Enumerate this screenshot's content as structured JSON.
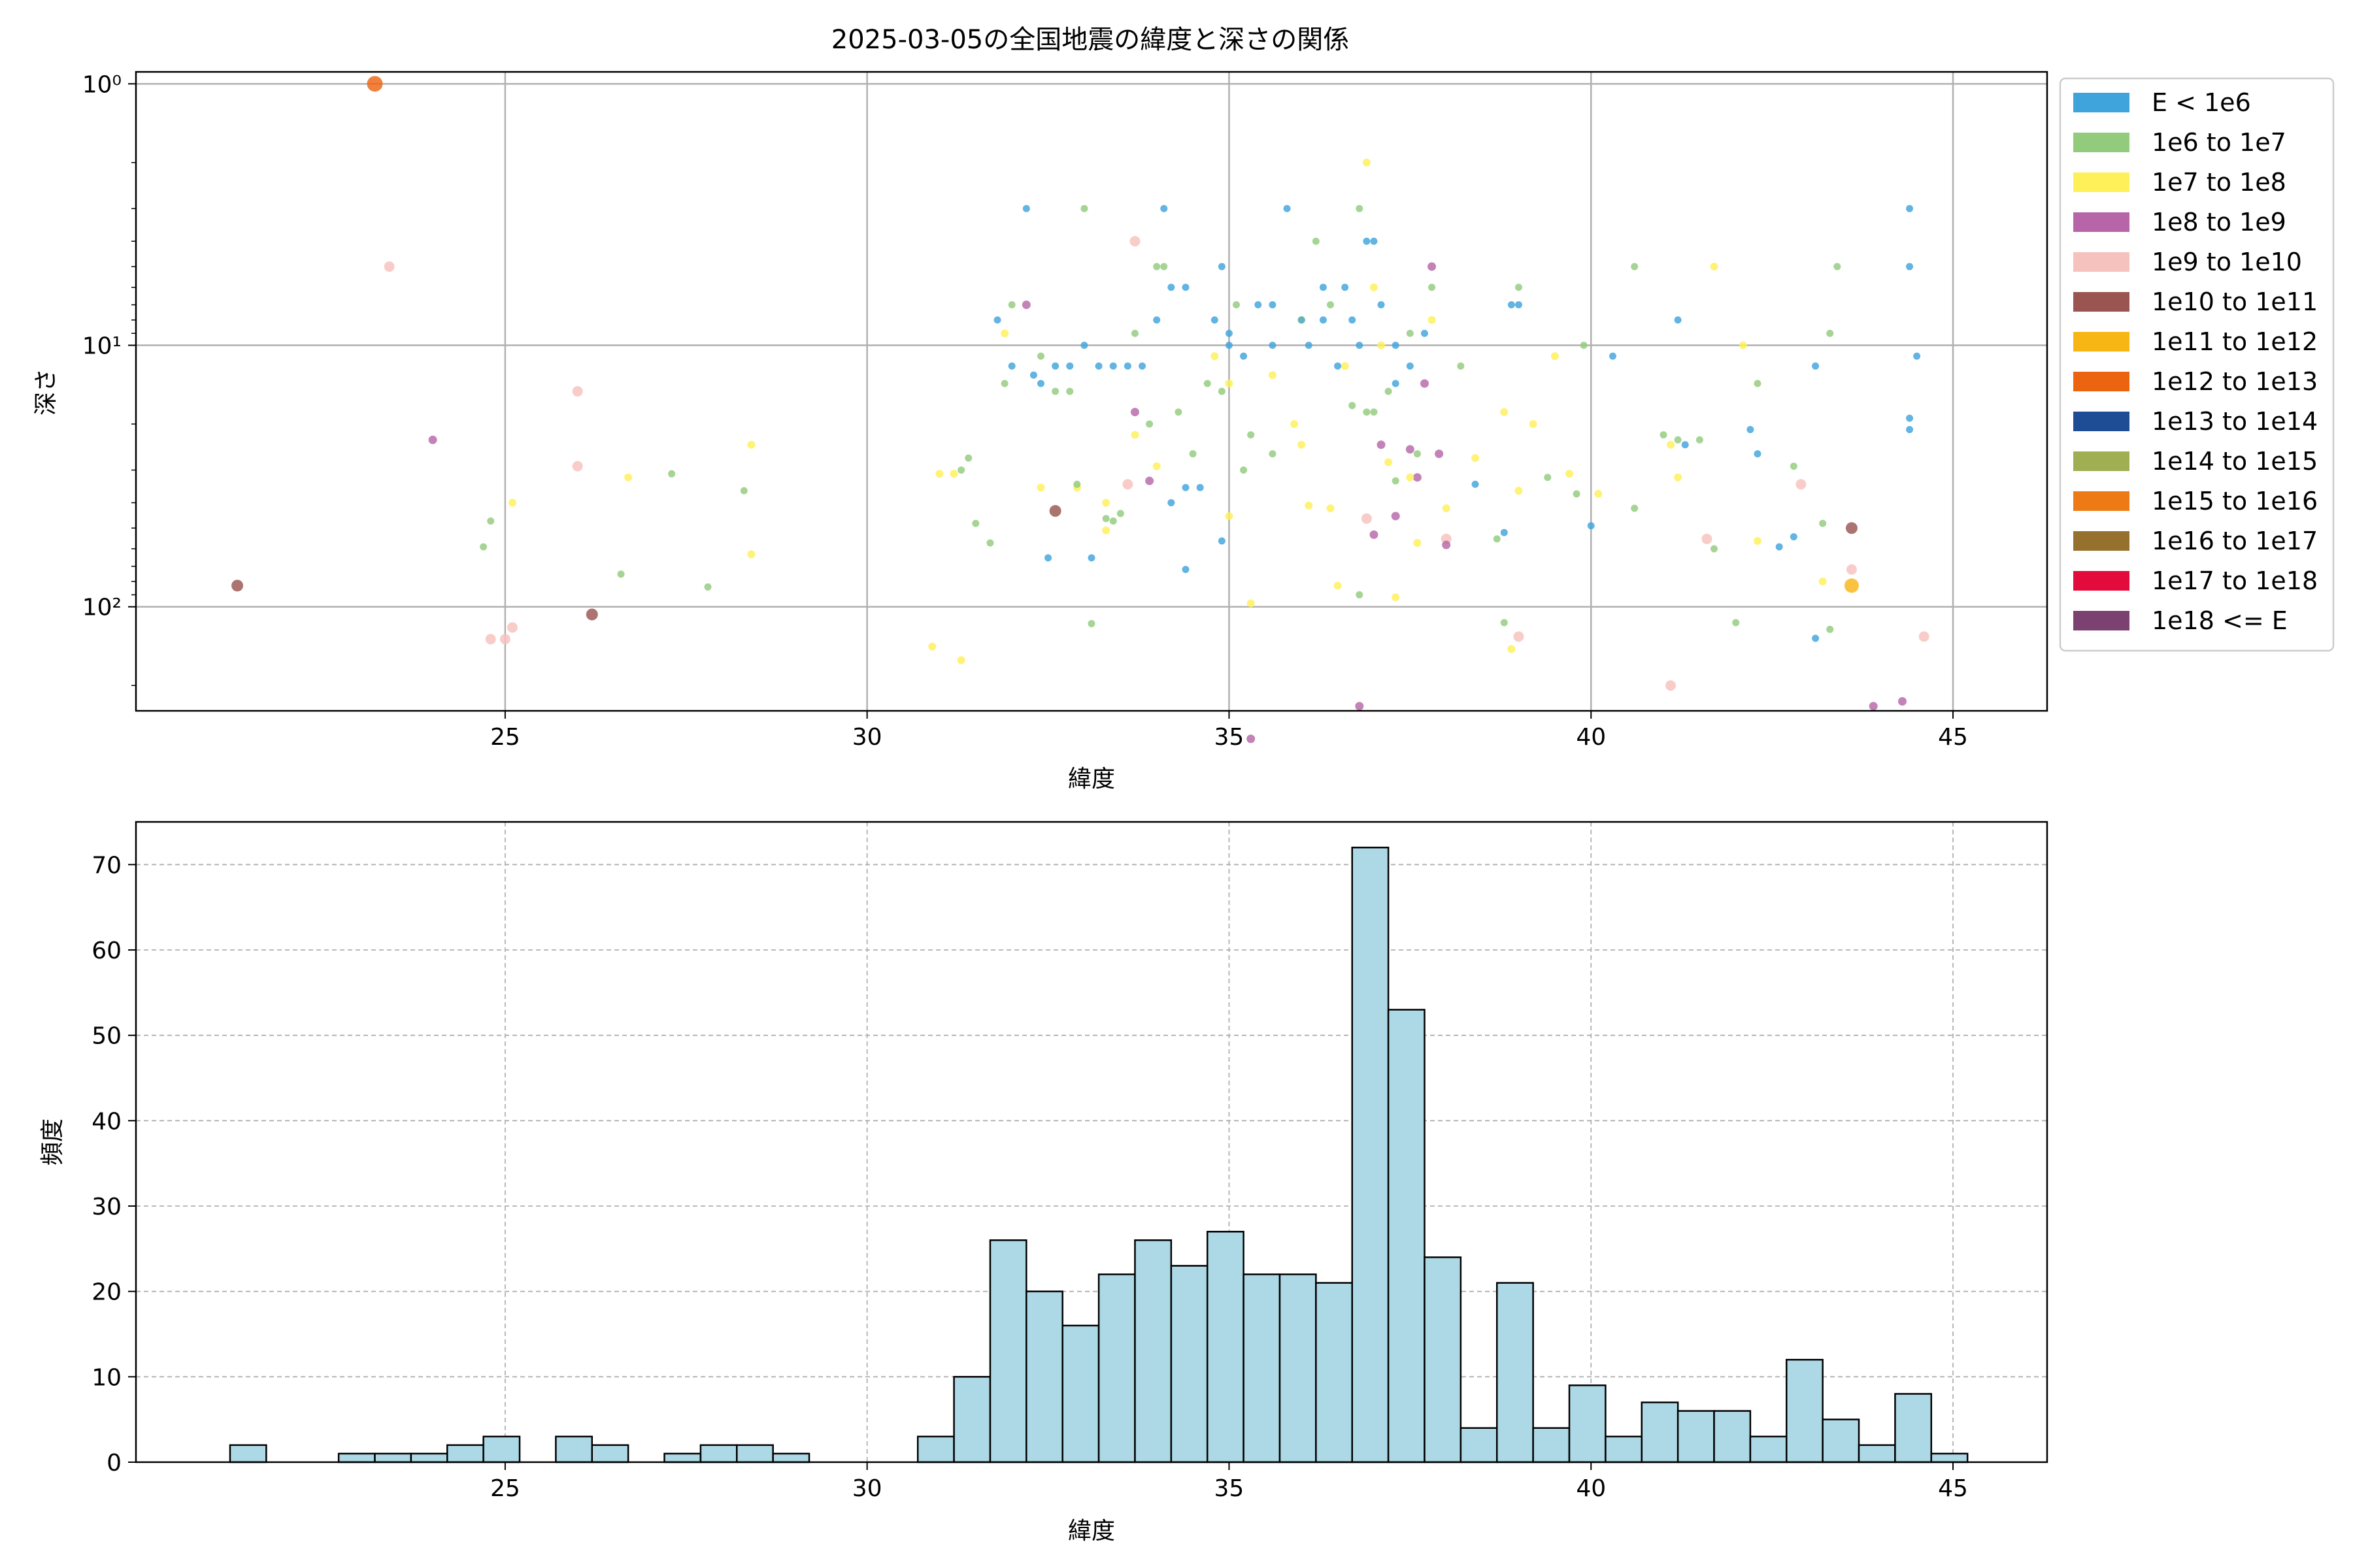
{
  "title": "2025-03-05の全国地震の緯度と深さの関係",
  "chart_data": [
    {
      "type": "scatter",
      "title": "2025-03-05の全国地震の緯度と深さの関係",
      "xlabel": "緯度",
      "ylabel": "深さ",
      "xlim": [
        19.9,
        46.3
      ],
      "ylim": [
        250,
        0.9
      ],
      "y_scale": "log (inverted)",
      "x_ticks": [
        "25",
        "30",
        "35",
        "40",
        "45"
      ],
      "y_ticks": [
        "10⁰",
        "10¹",
        "10²"
      ],
      "grid": true,
      "legend_position": "outside-right",
      "legend": [
        {
          "label": "E < 1e6",
          "color": "#3fa4dc"
        },
        {
          "label": "1e6 to 1e7",
          "color": "#93cb7d"
        },
        {
          "label": "1e7 to 1e8",
          "color": "#fef058"
        },
        {
          "label": "1e8 to 1e9",
          "color": "#b666a8"
        },
        {
          "label": "1e9 to 1e10",
          "color": "#f6c2bd"
        },
        {
          "label": "1e10 to 1e11",
          "color": "#9a5550"
        },
        {
          "label": "1e11 to 1e12",
          "color": "#f8b615"
        },
        {
          "label": "1e12 to 1e13",
          "color": "#ed6410"
        },
        {
          "label": "1e13 to 1e14",
          "color": "#1f4d95"
        },
        {
          "label": "1e14 to 1e15",
          "color": "#9faf52"
        },
        {
          "label": "1e15 to 1e16",
          "color": "#ee7a16"
        },
        {
          "label": "1e16 to 1e17",
          "color": "#96712d"
        },
        {
          "label": "1e17 to 1e18",
          "color": "#e20b3b"
        },
        {
          "label": "1e18 <= E",
          "color": "#7b4170"
        }
      ],
      "points": [
        [
          23.2,
          1,
          7
        ],
        [
          21.3,
          83,
          5
        ],
        [
          26.2,
          107,
          5
        ],
        [
          32.6,
          43,
          5
        ],
        [
          43.6,
          50,
          5
        ],
        [
          43.6,
          83,
          6
        ],
        [
          23.4,
          5,
          4
        ],
        [
          26.0,
          15,
          4
        ],
        [
          26.0,
          29,
          4
        ],
        [
          25.0,
          133,
          4
        ],
        [
          24.8,
          133,
          4
        ],
        [
          25.1,
          120,
          4
        ],
        [
          33.7,
          4,
          4
        ],
        [
          33.6,
          34,
          4
        ],
        [
          36.9,
          46,
          4
        ],
        [
          38.0,
          55,
          4
        ],
        [
          41.6,
          55,
          4
        ],
        [
          42.9,
          34,
          4
        ],
        [
          43.6,
          72,
          4
        ],
        [
          44.6,
          130,
          4
        ],
        [
          39.0,
          130,
          4
        ],
        [
          41.1,
          200,
          4
        ],
        [
          24.0,
          23,
          3
        ],
        [
          32.2,
          7,
          3
        ],
        [
          33.9,
          33,
          3
        ],
        [
          33.7,
          18,
          3
        ],
        [
          35.3,
          320,
          3
        ],
        [
          36.8,
          240,
          3
        ],
        [
          37.1,
          24,
          3
        ],
        [
          37.5,
          25,
          3
        ],
        [
          37.7,
          14,
          3
        ],
        [
          37.8,
          5,
          3
        ],
        [
          37.6,
          32,
          3
        ],
        [
          37.9,
          26,
          3
        ],
        [
          37.3,
          45,
          3
        ],
        [
          37.0,
          53,
          3
        ],
        [
          38.0,
          58,
          3
        ],
        [
          43.9,
          240,
          3
        ],
        [
          44.3,
          230,
          3
        ],
        [
          25.1,
          40,
          2
        ],
        [
          26.7,
          32,
          2
        ],
        [
          28.4,
          24,
          2
        ],
        [
          28.4,
          63,
          2
        ],
        [
          31.0,
          31,
          2
        ],
        [
          31.2,
          31,
          2
        ],
        [
          31.9,
          9,
          2
        ],
        [
          32.4,
          35,
          2
        ],
        [
          33.3,
          51,
          2
        ],
        [
          33.7,
          22,
          2
        ],
        [
          34.0,
          29,
          2
        ],
        [
          34.8,
          11,
          2
        ],
        [
          35.0,
          14,
          2
        ],
        [
          35.3,
          97,
          2
        ],
        [
          35.6,
          13,
          2
        ],
        [
          36.0,
          8,
          2
        ],
        [
          36.4,
          42,
          2
        ],
        [
          36.6,
          12,
          2
        ],
        [
          36.9,
          2,
          2
        ],
        [
          37.0,
          6,
          2
        ],
        [
          37.1,
          10,
          2
        ],
        [
          37.2,
          28,
          2
        ],
        [
          37.5,
          32,
          2
        ],
        [
          37.6,
          57,
          2
        ],
        [
          37.8,
          8,
          2
        ],
        [
          38.4,
          27,
          2
        ],
        [
          38.8,
          18,
          2
        ],
        [
          39.2,
          20,
          2
        ],
        [
          39.5,
          11,
          2
        ],
        [
          39.7,
          31,
          2
        ],
        [
          40.1,
          37,
          2
        ],
        [
          41.1,
          24,
          2
        ],
        [
          41.7,
          5,
          2
        ],
        [
          42.1,
          10,
          2
        ],
        [
          42.3,
          56,
          2
        ],
        [
          43.2,
          80,
          2
        ],
        [
          38.9,
          145,
          2
        ],
        [
          30.9,
          142,
          2
        ],
        [
          31.3,
          160,
          2
        ],
        [
          35.0,
          45,
          2
        ],
        [
          36.1,
          41,
          2
        ],
        [
          36.5,
          83,
          2
        ],
        [
          37.3,
          92,
          2
        ],
        [
          38.0,
          42,
          2
        ],
        [
          39.0,
          36,
          2
        ],
        [
          35.9,
          20,
          2
        ],
        [
          36.0,
          24,
          2
        ],
        [
          33.3,
          40,
          2
        ],
        [
          32.9,
          35,
          2
        ],
        [
          41.2,
          32,
          2
        ],
        [
          24.7,
          59,
          1
        ],
        [
          24.8,
          47,
          1
        ],
        [
          26.6,
          75,
          1
        ],
        [
          27.3,
          31,
          1
        ],
        [
          28.3,
          36,
          1
        ],
        [
          27.8,
          84,
          1
        ],
        [
          31.3,
          30,
          1
        ],
        [
          31.4,
          27,
          1
        ],
        [
          31.5,
          48,
          1
        ],
        [
          31.7,
          57,
          1
        ],
        [
          31.9,
          14,
          1
        ],
        [
          32.0,
          7,
          1
        ],
        [
          32.4,
          11,
          1
        ],
        [
          32.6,
          15,
          1
        ],
        [
          32.9,
          34,
          1
        ],
        [
          33.0,
          3,
          1
        ],
        [
          33.3,
          46,
          1
        ],
        [
          33.5,
          44,
          1
        ],
        [
          33.7,
          9,
          1
        ],
        [
          33.9,
          20,
          1
        ],
        [
          34.1,
          5,
          1
        ],
        [
          34.3,
          18,
          1
        ],
        [
          34.7,
          14,
          1
        ],
        [
          34.9,
          15,
          1
        ],
        [
          35.1,
          7,
          1
        ],
        [
          35.3,
          22,
          1
        ],
        [
          35.6,
          26,
          1
        ],
        [
          36.2,
          4,
          1
        ],
        [
          36.7,
          17,
          1
        ],
        [
          36.8,
          3,
          1
        ],
        [
          37.0,
          18,
          1
        ],
        [
          37.2,
          15,
          1
        ],
        [
          37.3,
          33,
          1
        ],
        [
          37.5,
          9,
          1
        ],
        [
          37.8,
          6,
          1
        ],
        [
          38.2,
          12,
          1
        ],
        [
          38.7,
          55,
          1
        ],
        [
          38.8,
          115,
          1
        ],
        [
          39.0,
          6,
          1
        ],
        [
          39.4,
          32,
          1
        ],
        [
          39.8,
          37,
          1
        ],
        [
          39.9,
          10,
          1
        ],
        [
          40.6,
          5,
          1
        ],
        [
          40.6,
          42,
          1
        ],
        [
          41.0,
          22,
          1
        ],
        [
          41.2,
          23,
          1
        ],
        [
          41.5,
          23,
          1
        ],
        [
          41.7,
          60,
          1
        ],
        [
          42.0,
          115,
          1
        ],
        [
          42.3,
          14,
          1
        ],
        [
          42.8,
          29,
          1
        ],
        [
          43.2,
          48,
          1
        ],
        [
          43.3,
          9,
          1
        ],
        [
          43.4,
          5,
          1
        ],
        [
          43.3,
          122,
          1
        ],
        [
          36.8,
          90,
          1
        ],
        [
          36.9,
          18,
          1
        ],
        [
          37.6,
          26,
          1
        ],
        [
          36.4,
          7,
          1
        ],
        [
          35.2,
          30,
          1
        ],
        [
          34.5,
          26,
          1
        ],
        [
          33.1,
          116,
          1
        ],
        [
          32.8,
          15,
          1
        ],
        [
          33.4,
          47,
          1
        ],
        [
          34.0,
          5,
          1
        ],
        [
          32.2,
          3,
          0
        ],
        [
          32.3,
          13,
          0
        ],
        [
          32.4,
          14,
          0
        ],
        [
          32.6,
          12,
          0
        ],
        [
          32.8,
          12,
          0
        ],
        [
          33.0,
          10,
          0
        ],
        [
          33.2,
          12,
          0
        ],
        [
          33.4,
          12,
          0
        ],
        [
          33.6,
          12,
          0
        ],
        [
          33.8,
          12,
          0
        ],
        [
          34.0,
          8,
          0
        ],
        [
          34.1,
          3,
          0
        ],
        [
          34.2,
          6,
          0
        ],
        [
          34.4,
          6,
          0
        ],
        [
          34.6,
          35,
          0
        ],
        [
          34.8,
          8,
          0
        ],
        [
          34.9,
          5,
          0
        ],
        [
          35.0,
          10,
          0
        ],
        [
          35.2,
          11,
          0
        ],
        [
          35.4,
          7,
          0
        ],
        [
          35.6,
          10,
          0
        ],
        [
          35.8,
          3,
          0
        ],
        [
          36.0,
          8,
          0
        ],
        [
          36.1,
          10,
          0
        ],
        [
          36.3,
          6,
          0
        ],
        [
          36.5,
          12,
          0
        ],
        [
          36.6,
          6,
          0
        ],
        [
          36.7,
          8,
          0
        ],
        [
          36.8,
          10,
          0
        ],
        [
          36.9,
          4,
          0
        ],
        [
          37.0,
          4,
          0
        ],
        [
          37.1,
          7,
          0
        ],
        [
          37.3,
          10,
          0
        ],
        [
          37.5,
          12,
          0
        ],
        [
          37.7,
          9,
          0
        ],
        [
          38.4,
          34,
          0
        ],
        [
          38.8,
          52,
          0
        ],
        [
          38.9,
          7,
          0
        ],
        [
          39.0,
          7,
          0
        ],
        [
          40.0,
          49,
          0
        ],
        [
          40.3,
          11,
          0
        ],
        [
          41.2,
          8,
          0
        ],
        [
          41.3,
          24,
          0
        ],
        [
          42.2,
          21,
          0
        ],
        [
          42.3,
          26,
          0
        ],
        [
          42.6,
          59,
          0
        ],
        [
          42.8,
          54,
          0
        ],
        [
          43.1,
          132,
          0
        ],
        [
          43.1,
          12,
          0
        ],
        [
          44.4,
          3,
          0
        ],
        [
          44.4,
          5,
          0
        ],
        [
          44.4,
          19,
          0
        ],
        [
          44.4,
          21,
          0
        ],
        [
          44.5,
          11,
          0
        ],
        [
          32.0,
          12,
          0
        ],
        [
          31.8,
          8,
          0
        ],
        [
          32.5,
          65,
          0
        ],
        [
          33.1,
          65,
          0
        ],
        [
          34.4,
          72,
          0
        ],
        [
          34.9,
          56,
          0
        ],
        [
          35.6,
          7,
          0
        ],
        [
          36.3,
          8,
          0
        ],
        [
          37.3,
          14,
          0
        ],
        [
          34.2,
          40,
          0
        ],
        [
          34.4,
          35,
          0
        ],
        [
          35.0,
          9,
          0
        ]
      ]
    },
    {
      "type": "bar",
      "subtype": "histogram",
      "xlabel": "緯度",
      "ylabel": "頻度",
      "xlim": [
        19.9,
        46.3
      ],
      "ylim": [
        0,
        75
      ],
      "x_ticks": [
        "25",
        "30",
        "35",
        "40",
        "45"
      ],
      "y_ticks": [
        "0",
        "10",
        "20",
        "30",
        "40",
        "50",
        "60",
        "70"
      ],
      "grid": true,
      "bar_color": "#add8e6",
      "bin_start": 21.2,
      "bin_width": 0.5,
      "values": [
        2,
        0,
        0,
        1,
        1,
        1,
        2,
        3,
        0,
        3,
        2,
        0,
        1,
        2,
        2,
        1,
        0,
        0,
        0,
        3,
        10,
        26,
        20,
        16,
        22,
        26,
        23,
        27,
        22,
        22,
        21,
        72,
        53,
        24,
        4,
        21,
        4,
        9,
        3,
        7,
        6,
        6,
        3,
        12,
        5,
        2,
        8,
        1
      ]
    }
  ]
}
